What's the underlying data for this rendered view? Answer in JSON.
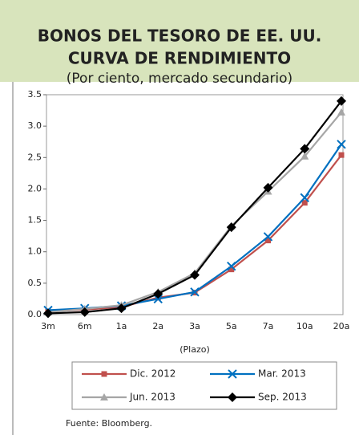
{
  "chart_data": {
    "type": "line",
    "title": [
      "BONOS DEL TESORO DE EE. UU.",
      "CURVA DE RENDIMIENTO"
    ],
    "subtitle": "(Por ciento, mercado secundario)",
    "x_label": "(Plazo)",
    "source": "Fuente:  Bloomberg.",
    "categories": [
      "3m",
      "6m",
      "1a",
      "2a",
      "3a",
      "5a",
      "7a",
      "10a",
      "20a"
    ],
    "series": [
      {
        "name": "Dic. 2012",
        "color": "#c0504d",
        "marker": "square",
        "values": [
          0.05,
          0.08,
          0.12,
          0.27,
          0.35,
          0.72,
          1.18,
          1.78,
          2.54
        ]
      },
      {
        "name": "Mar. 2013",
        "color": "#0070c0",
        "marker": "x",
        "values": [
          0.07,
          0.1,
          0.14,
          0.25,
          0.36,
          0.77,
          1.24,
          1.86,
          2.71
        ]
      },
      {
        "name": "Jun. 2013",
        "color": "#a6a6a6",
        "marker": "triangle",
        "values": [
          0.04,
          0.09,
          0.15,
          0.36,
          0.66,
          1.41,
          1.96,
          2.52,
          3.22
        ]
      },
      {
        "name": "Sep. 2013",
        "color": "#000000",
        "marker": "diamond",
        "values": [
          0.02,
          0.04,
          0.1,
          0.33,
          0.63,
          1.39,
          2.02,
          2.64,
          3.4
        ]
      }
    ],
    "ylim": [
      0,
      3.5
    ],
    "yticks": [
      {
        "value": 0,
        "label": "0.0"
      },
      {
        "value": 0.5,
        "label": "0.5"
      },
      {
        "value": 1,
        "label": "1.0"
      },
      {
        "value": 1.5,
        "label": "1.5"
      },
      {
        "value": 2,
        "label": "2.0"
      },
      {
        "value": 2.5,
        "label": "2.5"
      },
      {
        "value": 3,
        "label": "3.0"
      },
      {
        "value": 3.5,
        "label": "3.5"
      }
    ],
    "grid": false
  }
}
